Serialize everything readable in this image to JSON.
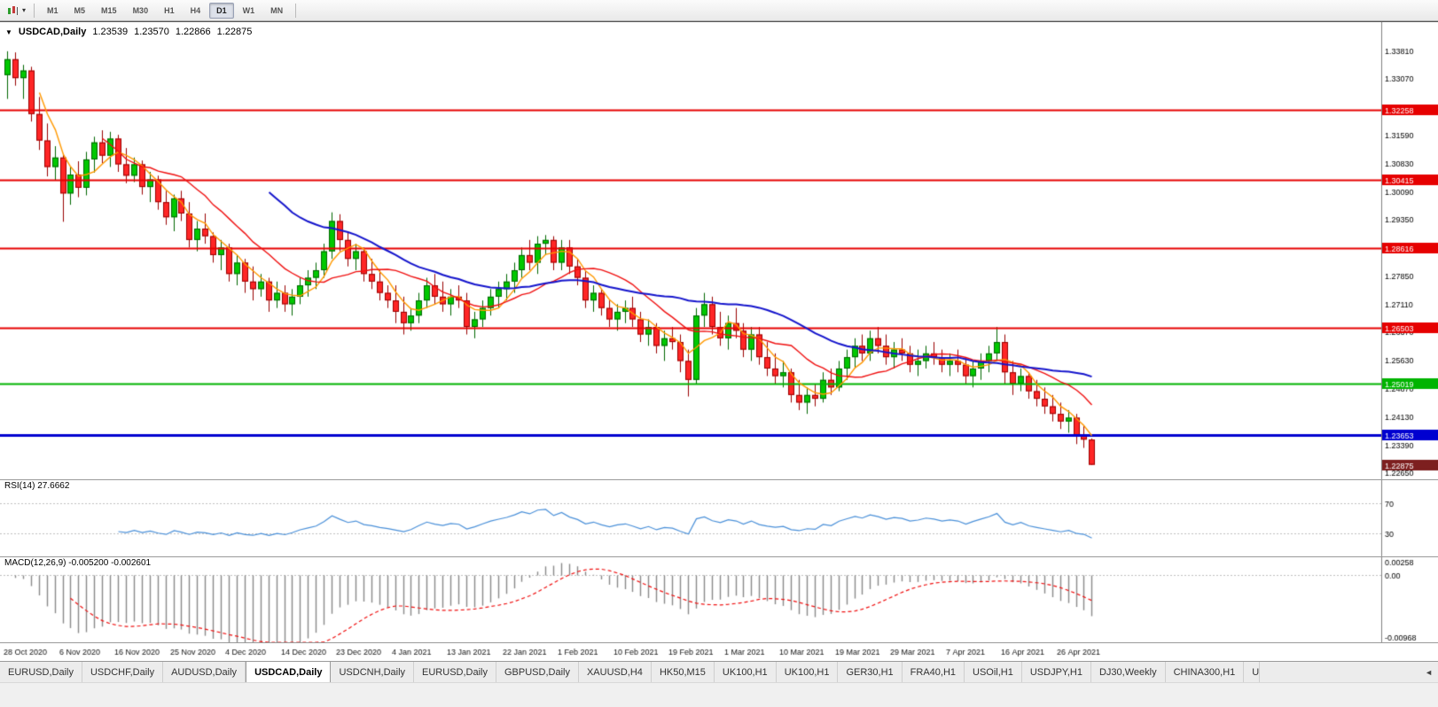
{
  "icons": {
    "dropdown": "▾",
    "collapse": "▼",
    "tab_scroll_left": "◄"
  },
  "toolbar": {
    "timeframes": [
      {
        "label": "M1",
        "active": false
      },
      {
        "label": "M5",
        "active": false
      },
      {
        "label": "M15",
        "active": false
      },
      {
        "label": "M30",
        "active": false
      },
      {
        "label": "H1",
        "active": false
      },
      {
        "label": "H4",
        "active": false
      },
      {
        "label": "D1",
        "active": true
      },
      {
        "label": "W1",
        "active": false
      },
      {
        "label": "MN",
        "active": false
      }
    ]
  },
  "chart": {
    "title": {
      "symbol": "USDCAD,Daily",
      "open": "1.23539",
      "high": "1.23570",
      "low": "1.22866",
      "close": "1.22875"
    }
  },
  "chart_data": {
    "type": "candlestick",
    "symbol": "USDCAD",
    "timeframe": "Daily",
    "price_max": 1.3458,
    "price_min": 1.2249,
    "price_axis_labels": [
      "1.33810",
      "1.33070",
      "1.32330",
      "1.31590",
      "1.30830",
      "1.30090",
      "1.29350",
      "1.28610",
      "1.27850",
      "1.27110",
      "1.26370",
      "1.25630",
      "1.24870",
      "1.24130",
      "1.23390",
      "1.22650"
    ],
    "horizontal_lines": [
      {
        "value": "1.32258",
        "color": "#e60000",
        "width": 2
      },
      {
        "value": "1.30415",
        "color": "#e60000",
        "width": 2
      },
      {
        "value": "1.28616",
        "color": "#e60000",
        "width": 2
      },
      {
        "value": "1.26503",
        "color": "#e60000",
        "width": 2
      },
      {
        "value": "1.25019",
        "color": "#00b400",
        "width": 2
      },
      {
        "value": "1.23653",
        "color": "#0000d0",
        "width": 3
      }
    ],
    "current_price": {
      "value": "1.22875",
      "tag_color": "#7d1f1f"
    },
    "date_labels": [
      "28 Oct 2020",
      "6 Nov 2020",
      "16 Nov 2020",
      "25 Nov 2020",
      "4 Dec 2020",
      "14 Dec 2020",
      "23 Dec 2020",
      "4 Jan 2021",
      "13 Jan 2021",
      "22 Jan 2021",
      "1 Feb 2021",
      "10 Feb 2021",
      "19 Feb 2021",
      "1 Mar 2021",
      "10 Mar 2021",
      "19 Mar 2021",
      "29 Mar 2021",
      "7 Apr 2021",
      "16 Apr 2021",
      "26 Apr 2021"
    ],
    "date_label_step": 7,
    "up_color": "#00c800",
    "up_border": "#006600",
    "down_color": "#ff2626",
    "down_border": "#990000",
    "moving_averages": [
      {
        "period": 5,
        "color": "#ff9900",
        "width": 1.4
      },
      {
        "period": 13,
        "color": "#f01010",
        "width": 1.4
      },
      {
        "period": 34,
        "color": "#1414cc",
        "width": 2
      }
    ],
    "rsi": {
      "label": "RSI(14) 27.6662",
      "period": 14,
      "levels": [
        "70",
        "30"
      ],
      "line_color": "#4a90d9",
      "scale_max": 100,
      "scale_min": 0
    },
    "macd": {
      "label": "MACD(12,26,9) -0.005200 -0.002601",
      "fast": 12,
      "slow": 26,
      "signal_period": 9,
      "axis_top": "0.00258",
      "axis_zero": "0.00",
      "axis_bottom": "-0.00968",
      "scale_max": 0.00258,
      "scale_min": -0.00968,
      "histogram_color": "#8a8a8a",
      "signal_color": "#f01010"
    },
    "candles": [
      [
        1.3318,
        1.3381,
        1.3255,
        1.336
      ],
      [
        1.336,
        1.3378,
        1.329,
        1.331
      ],
      [
        1.331,
        1.3345,
        1.3255,
        1.333
      ],
      [
        1.333,
        1.334,
        1.3195,
        1.3215
      ],
      [
        1.3215,
        1.326,
        1.312,
        1.3145
      ],
      [
        1.3145,
        1.319,
        1.305,
        1.3075
      ],
      [
        1.3075,
        1.313,
        1.304,
        1.31
      ],
      [
        1.31,
        1.311,
        1.293,
        1.3005
      ],
      [
        1.3005,
        1.3075,
        1.2975,
        1.3055
      ],
      [
        1.3055,
        1.309,
        1.2995,
        1.302
      ],
      [
        1.302,
        1.3115,
        1.3,
        1.3095
      ],
      [
        1.3095,
        1.3155,
        1.306,
        1.314
      ],
      [
        1.314,
        1.3172,
        1.3085,
        1.3105
      ],
      [
        1.3105,
        1.3168,
        1.3075,
        1.315
      ],
      [
        1.315,
        1.316,
        1.3062,
        1.3082
      ],
      [
        1.3082,
        1.3125,
        1.3032,
        1.3052
      ],
      [
        1.3052,
        1.31,
        1.3035,
        1.3082
      ],
      [
        1.3082,
        1.3092,
        1.3002,
        1.3022
      ],
      [
        1.3022,
        1.3062,
        1.2982,
        1.3042
      ],
      [
        1.3042,
        1.3052,
        1.2962,
        1.2982
      ],
      [
        1.2982,
        1.3012,
        1.2922,
        1.2942
      ],
      [
        1.2942,
        1.3002,
        1.2905,
        1.2992
      ],
      [
        1.2992,
        1.3012,
        1.2932,
        1.2952
      ],
      [
        1.2952,
        1.2982,
        1.2862,
        1.2882
      ],
      [
        1.2882,
        1.2932,
        1.2852,
        1.2912
      ],
      [
        1.2912,
        1.2952,
        1.2872,
        1.2892
      ],
      [
        1.2892,
        1.2902,
        1.2822,
        1.2842
      ],
      [
        1.2842,
        1.2882,
        1.2802,
        1.2862
      ],
      [
        1.2862,
        1.2872,
        1.2772,
        1.2792
      ],
      [
        1.2792,
        1.2842,
        1.2762,
        1.2822
      ],
      [
        1.2822,
        1.2832,
        1.2742,
        1.2772
      ],
      [
        1.2772,
        1.2812,
        1.2722,
        1.2752
      ],
      [
        1.2752,
        1.2792,
        1.2732,
        1.2772
      ],
      [
        1.2772,
        1.2782,
        1.2692,
        1.2722
      ],
      [
        1.2722,
        1.2772,
        1.2702,
        1.2742
      ],
      [
        1.2742,
        1.2762,
        1.2692,
        1.2712
      ],
      [
        1.2712,
        1.2752,
        1.2682,
        1.2732
      ],
      [
        1.2732,
        1.2782,
        1.2712,
        1.2762
      ],
      [
        1.2762,
        1.2802,
        1.2732,
        1.2782
      ],
      [
        1.2782,
        1.2822,
        1.2752,
        1.2802
      ],
      [
        1.2802,
        1.2872,
        1.2782,
        1.2852
      ],
      [
        1.2852,
        1.2955,
        1.2832,
        1.2932
      ],
      [
        1.2932,
        1.295,
        1.2852,
        1.2882
      ],
      [
        1.2882,
        1.2902,
        1.2812,
        1.2832
      ],
      [
        1.2832,
        1.2872,
        1.2802,
        1.2852
      ],
      [
        1.2852,
        1.2862,
        1.2772,
        1.2792
      ],
      [
        1.2792,
        1.2832,
        1.2752,
        1.2772
      ],
      [
        1.2772,
        1.2802,
        1.2722,
        1.2742
      ],
      [
        1.2742,
        1.2762,
        1.2702,
        1.2722
      ],
      [
        1.2722,
        1.2762,
        1.2662,
        1.2692
      ],
      [
        1.2692,
        1.2732,
        1.2632,
        1.2662
      ],
      [
        1.2662,
        1.2702,
        1.2642,
        1.2682
      ],
      [
        1.2682,
        1.2742,
        1.2662,
        1.2722
      ],
      [
        1.2722,
        1.2782,
        1.2702,
        1.2762
      ],
      [
        1.2762,
        1.2792,
        1.2712,
        1.2732
      ],
      [
        1.2732,
        1.2772,
        1.2692,
        1.2712
      ],
      [
        1.2712,
        1.2752,
        1.2682,
        1.2732
      ],
      [
        1.2732,
        1.2762,
        1.2702,
        1.2722
      ],
      [
        1.2722,
        1.2742,
        1.2632,
        1.2652
      ],
      [
        1.2652,
        1.2692,
        1.2622,
        1.2672
      ],
      [
        1.2672,
        1.2722,
        1.2652,
        1.2702
      ],
      [
        1.2702,
        1.2752,
        1.2682,
        1.2732
      ],
      [
        1.2732,
        1.2772,
        1.2702,
        1.2752
      ],
      [
        1.2752,
        1.2792,
        1.2722,
        1.2772
      ],
      [
        1.2772,
        1.2822,
        1.2742,
        1.2802
      ],
      [
        1.2802,
        1.2862,
        1.2782,
        1.2842
      ],
      [
        1.2842,
        1.2882,
        1.2802,
        1.2822
      ],
      [
        1.2822,
        1.2892,
        1.2792,
        1.2872
      ],
      [
        1.2872,
        1.2895,
        1.2842,
        1.2882
      ],
      [
        1.2882,
        1.2892,
        1.2802,
        1.2822
      ],
      [
        1.2822,
        1.2882,
        1.2802,
        1.2862
      ],
      [
        1.2862,
        1.2882,
        1.2792,
        1.2812
      ],
      [
        1.2812,
        1.2832,
        1.2762,
        1.2782
      ],
      [
        1.2782,
        1.2802,
        1.2702,
        1.2722
      ],
      [
        1.2722,
        1.2762,
        1.2692,
        1.2742
      ],
      [
        1.2742,
        1.2752,
        1.2682,
        1.2702
      ],
      [
        1.2702,
        1.2722,
        1.2652,
        1.2672
      ],
      [
        1.2672,
        1.2712,
        1.2642,
        1.2692
      ],
      [
        1.2692,
        1.2722,
        1.2662,
        1.2702
      ],
      [
        1.2702,
        1.2732,
        1.2652,
        1.2672
      ],
      [
        1.2672,
        1.2692,
        1.2612,
        1.2632
      ],
      [
        1.2632,
        1.2672,
        1.2602,
        1.2652
      ],
      [
        1.2652,
        1.2662,
        1.2582,
        1.2602
      ],
      [
        1.2602,
        1.2642,
        1.2562,
        1.2622
      ],
      [
        1.2622,
        1.2652,
        1.2592,
        1.2612
      ],
      [
        1.2612,
        1.2632,
        1.2532,
        1.2562
      ],
      [
        1.2562,
        1.2592,
        1.2468,
        1.2512
      ],
      [
        1.2512,
        1.2702,
        1.2502,
        1.2682
      ],
      [
        1.2682,
        1.2742,
        1.2652,
        1.2712
      ],
      [
        1.2712,
        1.2732,
        1.2632,
        1.2652
      ],
      [
        1.2652,
        1.2692,
        1.2602,
        1.2622
      ],
      [
        1.2622,
        1.2682,
        1.2592,
        1.2662
      ],
      [
        1.2662,
        1.2702,
        1.2622,
        1.2642
      ],
      [
        1.2642,
        1.2662,
        1.2572,
        1.2592
      ],
      [
        1.2592,
        1.2652,
        1.2562,
        1.2632
      ],
      [
        1.2632,
        1.2652,
        1.2552,
        1.2572
      ],
      [
        1.2572,
        1.2612,
        1.2522,
        1.2542
      ],
      [
        1.2542,
        1.2582,
        1.2502,
        1.2522
      ],
      [
        1.2522,
        1.2562,
        1.2492,
        1.2532
      ],
      [
        1.2532,
        1.2542,
        1.2452,
        1.2472
      ],
      [
        1.2472,
        1.2512,
        1.2432,
        1.2452
      ],
      [
        1.2452,
        1.2492,
        1.2422,
        1.2472
      ],
      [
        1.2472,
        1.2502,
        1.2442,
        1.2462
      ],
      [
        1.2462,
        1.2532,
        1.2452,
        1.2512
      ],
      [
        1.2512,
        1.2542,
        1.2472,
        1.2492
      ],
      [
        1.2492,
        1.2562,
        1.2482,
        1.2542
      ],
      [
        1.2542,
        1.2592,
        1.2512,
        1.2572
      ],
      [
        1.2572,
        1.2622,
        1.2542,
        1.2602
      ],
      [
        1.2602,
        1.2632,
        1.2562,
        1.2582
      ],
      [
        1.2582,
        1.2642,
        1.2562,
        1.2622
      ],
      [
        1.2622,
        1.2652,
        1.2582,
        1.2602
      ],
      [
        1.2602,
        1.2632,
        1.2552,
        1.2572
      ],
      [
        1.2572,
        1.2612,
        1.2542,
        1.2592
      ],
      [
        1.2592,
        1.2622,
        1.2562,
        1.2582
      ],
      [
        1.2582,
        1.2602,
        1.2532,
        1.2552
      ],
      [
        1.2552,
        1.2592,
        1.2522,
        1.2562
      ],
      [
        1.2562,
        1.2602,
        1.2542,
        1.2582
      ],
      [
        1.2582,
        1.2612,
        1.2552,
        1.2572
      ],
      [
        1.2572,
        1.2592,
        1.2532,
        1.2552
      ],
      [
        1.2552,
        1.2582,
        1.2522,
        1.2562
      ],
      [
        1.2562,
        1.2592,
        1.2532,
        1.2552
      ],
      [
        1.2552,
        1.2572,
        1.2502,
        1.2522
      ],
      [
        1.2522,
        1.2562,
        1.2492,
        1.2542
      ],
      [
        1.2542,
        1.2582,
        1.2512,
        1.2562
      ],
      [
        1.2562,
        1.2602,
        1.2532,
        1.2582
      ],
      [
        1.2582,
        1.2652,
        1.2562,
        1.2612
      ],
      [
        1.2612,
        1.2632,
        1.2502,
        1.2532
      ],
      [
        1.2532,
        1.2562,
        1.2472,
        1.2502
      ],
      [
        1.2502,
        1.2542,
        1.2482,
        1.2522
      ],
      [
        1.2522,
        1.2532,
        1.2462,
        1.2482
      ],
      [
        1.2482,
        1.2512,
        1.2442,
        1.2462
      ],
      [
        1.2462,
        1.2492,
        1.2422,
        1.2442
      ],
      [
        1.2442,
        1.2472,
        1.2402,
        1.2422
      ],
      [
        1.2422,
        1.2452,
        1.2382,
        1.2402
      ],
      [
        1.2402,
        1.2432,
        1.2372,
        1.2412
      ],
      [
        1.2412,
        1.2422,
        1.2342,
        1.2366
      ],
      [
        1.2366,
        1.2392,
        1.2332,
        1.2354
      ],
      [
        1.23539,
        1.2357,
        1.22866,
        1.22875
      ]
    ]
  },
  "tabs": {
    "items": [
      {
        "label": "EURUSD,Daily",
        "active": false
      },
      {
        "label": "USDCHF,Daily",
        "active": false
      },
      {
        "label": "AUDUSD,Daily",
        "active": false
      },
      {
        "label": "USDCAD,Daily",
        "active": true
      },
      {
        "label": "USDCNH,Daily",
        "active": false
      },
      {
        "label": "EURUSD,Daily",
        "active": false
      },
      {
        "label": "GBPUSD,Daily",
        "active": false
      },
      {
        "label": "XAUUSD,H4",
        "active": false
      },
      {
        "label": "HK50,M15",
        "active": false
      },
      {
        "label": "UK100,H1",
        "active": false
      },
      {
        "label": "UK100,H1",
        "active": false
      },
      {
        "label": "GER30,H1",
        "active": false
      },
      {
        "label": "FRA40,H1",
        "active": false
      },
      {
        "label": "USOil,H1",
        "active": false
      },
      {
        "label": "USDJPY,H1",
        "active": false
      },
      {
        "label": "DJ30,Weekly",
        "active": false
      },
      {
        "label": "CHINA300,H1",
        "active": false
      },
      {
        "label": "U",
        "active": false,
        "truncated": true
      }
    ]
  }
}
